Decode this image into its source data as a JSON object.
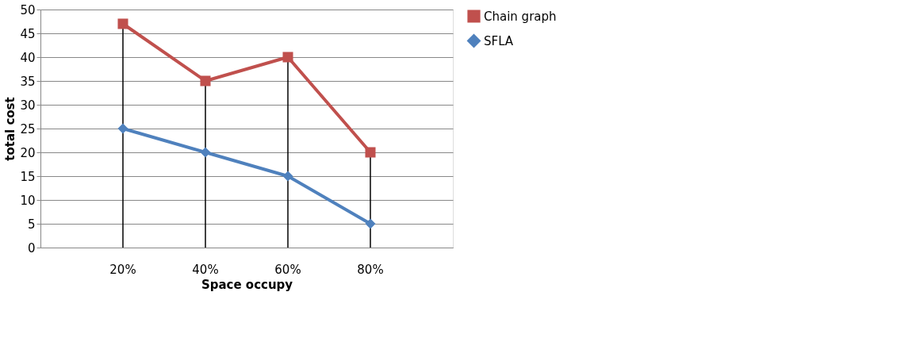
{
  "chart_data": {
    "type": "line",
    "xlabel": "Space occupy",
    "ylabel": "total cost",
    "categories": [
      "20%",
      "40%",
      "60%",
      "80%"
    ],
    "series": [
      {
        "name": "Chain graph",
        "color": "#c0504d",
        "values": [
          47,
          35,
          40,
          20
        ],
        "marker": "square"
      },
      {
        "name": "SFLA",
        "color": "#4f81bd",
        "values": [
          25,
          20,
          15,
          5
        ],
        "marker": "diamond"
      }
    ],
    "ylim": [
      0,
      50
    ],
    "yticks": [
      0,
      5,
      10,
      15,
      20,
      25,
      30,
      35,
      40,
      45,
      50
    ],
    "grid": "y",
    "legend": "right",
    "ref_lines": [
      {
        "axis": "x",
        "value": "20%",
        "color": "#000000"
      },
      {
        "axis": "x",
        "value": "40%",
        "color": "#000000"
      },
      {
        "axis": "x",
        "value": "60%",
        "color": "#000000"
      },
      {
        "axis": "x",
        "value": "80%",
        "color": "#000000"
      }
    ]
  }
}
